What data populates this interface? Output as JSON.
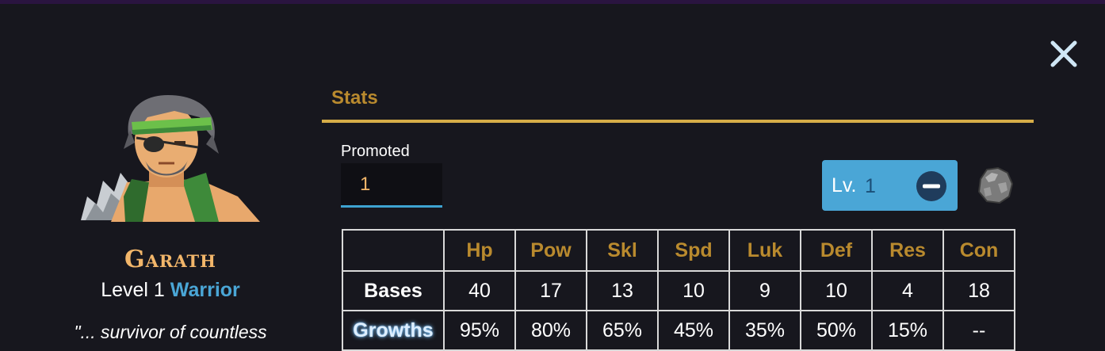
{
  "unit": {
    "name": "Garath",
    "level_prefix": "Level 1",
    "class": "Warrior",
    "quote": "\"... survivor of countless"
  },
  "stats": {
    "title": "Stats",
    "promoted_label": "Promoted",
    "promoted_value": "1",
    "lv_label": "Lv.",
    "lv_value": "1",
    "headers": [
      "Hp",
      "Pow",
      "Skl",
      "Spd",
      "Luk",
      "Def",
      "Res",
      "Con"
    ],
    "bases_label": "Bases",
    "bases": [
      "40",
      "17",
      "13",
      "10",
      "9",
      "10",
      "4",
      "18"
    ],
    "growths_label": "Growths",
    "growths": [
      "95%",
      "80%",
      "65%",
      "45%",
      "35%",
      "50%",
      "15%",
      "--"
    ]
  },
  "icons": {
    "close": "close-icon",
    "minus": "minus-circle-icon",
    "item": "stone-item-icon"
  },
  "colors": {
    "background": "#17171e",
    "accent_gold": "#d6ad48",
    "header_gold": "#b98a2e",
    "name_orange": "#f2b66a",
    "accent_blue": "#4aa6d6"
  }
}
